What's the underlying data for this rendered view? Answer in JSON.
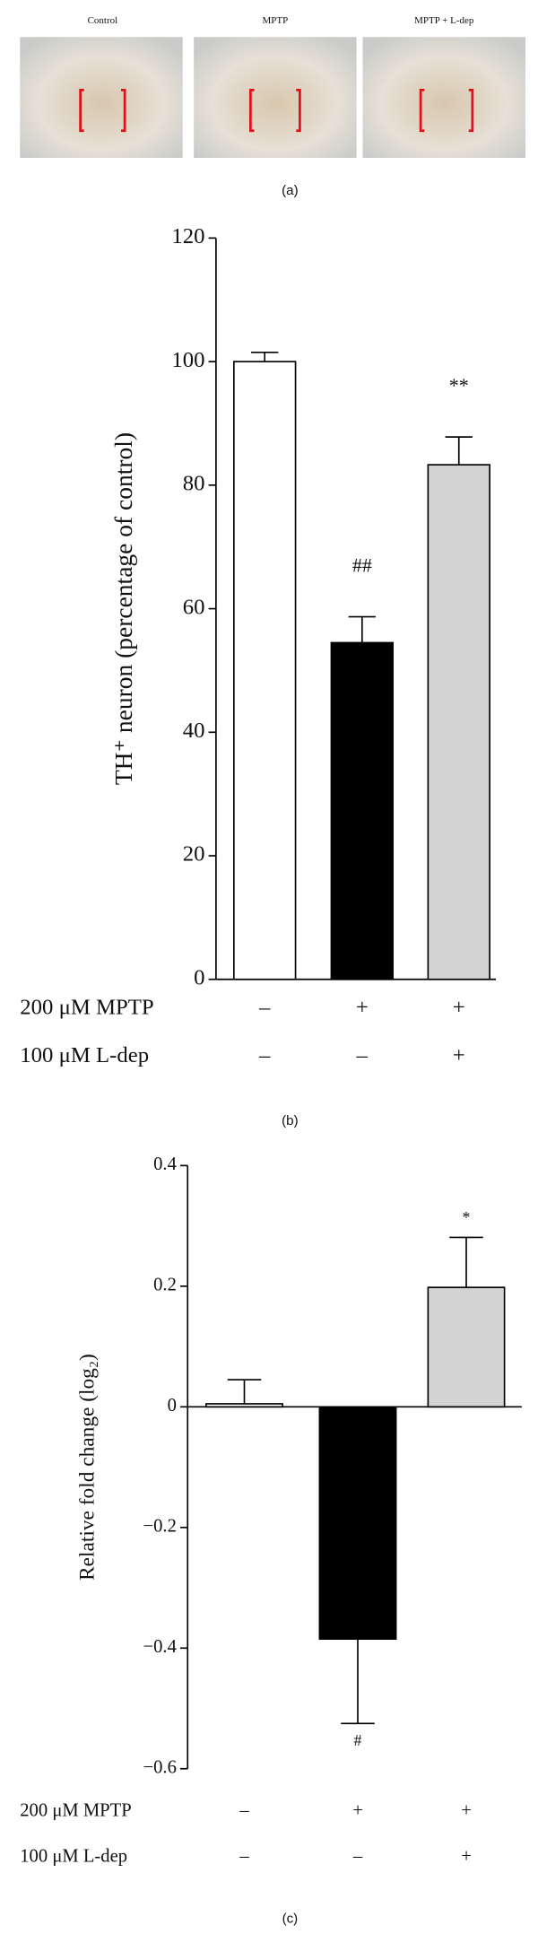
{
  "panels": {
    "a": {
      "labels": [
        "Control",
        "MPTP",
        "MPTP + L-dep"
      ],
      "caption": "(a)"
    }
  },
  "chart_data": [
    {
      "type": "bar",
      "caption": "(b)",
      "ylabel": "TH⁺ neuron (percentage of control)",
      "values": [
        100,
        54.5,
        83.3
      ],
      "errors": [
        1.5,
        4.2,
        4.5
      ],
      "bar_colors": [
        "#ffffff",
        "#000000",
        "#d3d3d3"
      ],
      "annotations": [
        null,
        "##",
        "**"
      ],
      "conditions": [
        {
          "label": "200 μM MPTP",
          "marks": [
            "–",
            "+",
            "+"
          ]
        },
        {
          "label": "100 μM L-dep",
          "marks": [
            "–",
            "–",
            "+"
          ]
        }
      ],
      "ylim": [
        0,
        120
      ],
      "yticks": [
        0,
        20,
        40,
        60,
        80,
        100,
        120
      ]
    },
    {
      "type": "bar",
      "caption": "(c)",
      "ylabel": "Relative fold change (log₂)",
      "values": [
        0.005,
        -0.385,
        0.198
      ],
      "errors": [
        0.04,
        0.14,
        0.083
      ],
      "bar_colors": [
        "#ffffff",
        "#000000",
        "#d3d3d3"
      ],
      "annotations": [
        null,
        "#",
        "*"
      ],
      "conditions": [
        {
          "label": "200 μM MPTP",
          "marks": [
            "–",
            "+",
            "+"
          ]
        },
        {
          "label": "100 μM L-dep",
          "marks": [
            "–",
            "–",
            "+"
          ]
        }
      ],
      "ylim": [
        -0.6,
        0.4
      ],
      "yticks": [
        {
          "value": -0.6,
          "label": "−0.6"
        },
        {
          "value": -0.4,
          "label": "−0.4"
        },
        {
          "value": -0.2,
          "label": "−0.2"
        },
        0,
        0.2,
        0.4
      ]
    }
  ]
}
